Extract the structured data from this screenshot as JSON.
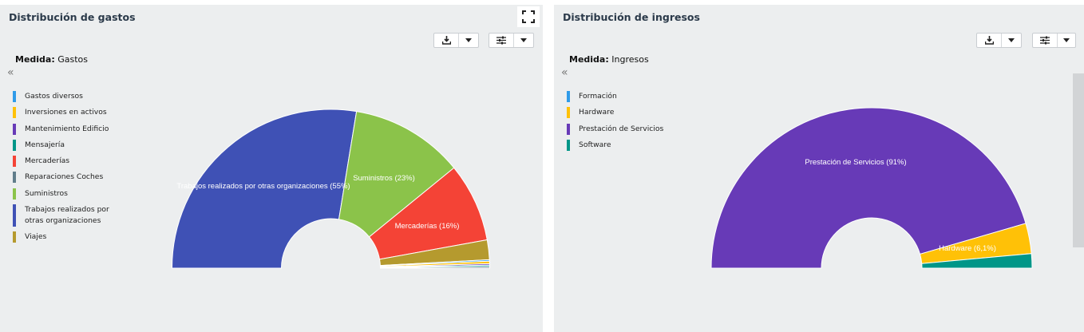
{
  "panels": [
    {
      "title": "Distribución de gastos",
      "measure_label": "Medida:",
      "measure_value": "Gastos",
      "legend": [
        {
          "label": "Gastos diversos",
          "color": "#2f9be9"
        },
        {
          "label": "Inversiones en activos",
          "color": "#ffc107"
        },
        {
          "label": "Mantenimiento Edificio",
          "color": "#673ab7"
        },
        {
          "label": "Mensajería",
          "color": "#009688"
        },
        {
          "label": "Mercaderías",
          "color": "#f44336"
        },
        {
          "label": "Reparaciones Coches",
          "color": "#607d8b"
        },
        {
          "label": "Suministros",
          "color": "#8bc34a"
        },
        {
          "label": "Trabajos realizados por otras organizaciones",
          "color": "#3f51b5"
        },
        {
          "label": "Viajes",
          "color": "#b59a2e"
        }
      ]
    },
    {
      "title": "Distribución de ingresos",
      "measure_label": "Medida:",
      "measure_value": "Ingresos",
      "legend": [
        {
          "label": "Formación",
          "color": "#2f9be9"
        },
        {
          "label": "Hardware",
          "color": "#ffc107"
        },
        {
          "label": "Prestación de Servicios",
          "color": "#673ab7"
        },
        {
          "label": "Software",
          "color": "#009688"
        }
      ]
    }
  ],
  "icons": {
    "expand": "expand-icon",
    "download": "download-icon",
    "settings": "sliders-icon",
    "dropdown": "caret-down-icon",
    "collapse": "double-chevron-left-icon"
  },
  "chart_data": [
    {
      "type": "pie",
      "variant": "semi-donut",
      "slices": [
        {
          "name": "Trabajos realizados por otras organizaciones",
          "value": 55,
          "label": "Trabajos realizados por otras organizaciones (55%)",
          "color": "#3f51b5"
        },
        {
          "name": "Suministros",
          "value": 23,
          "label": "Suministros (23%)",
          "color": "#8bc34a"
        },
        {
          "name": "Mercaderías",
          "value": 16,
          "label": "Mercaderías (16%)",
          "color": "#f44336"
        },
        {
          "name": "Viajes",
          "value": 4,
          "label": "",
          "color": "#b59a2e"
        },
        {
          "name": "Gastos diversos",
          "value": 0.3,
          "label": "",
          "color": "#2f9be9"
        },
        {
          "name": "Inversiones en activos",
          "value": 0.5,
          "label": "",
          "color": "#ffc107"
        },
        {
          "name": "Mantenimiento Edificio",
          "value": 0.3,
          "label": "",
          "color": "#673ab7"
        },
        {
          "name": "Mensajería",
          "value": 0.3,
          "label": "",
          "color": "#009688"
        },
        {
          "name": "Reparaciones Coches",
          "value": 0.3,
          "label": "",
          "color": "#607d8b"
        }
      ]
    },
    {
      "type": "pie",
      "variant": "semi-donut",
      "slices": [
        {
          "name": "Prestación de Servicios",
          "value": 91,
          "label": "Prestación de Servicios (91%)",
          "color": "#673ab7"
        },
        {
          "name": "Hardware",
          "value": 6.1,
          "label": "Hardware (6,1%)",
          "color": "#ffc107"
        },
        {
          "name": "Software",
          "value": 2.9,
          "label": "",
          "color": "#009688"
        }
      ]
    }
  ]
}
